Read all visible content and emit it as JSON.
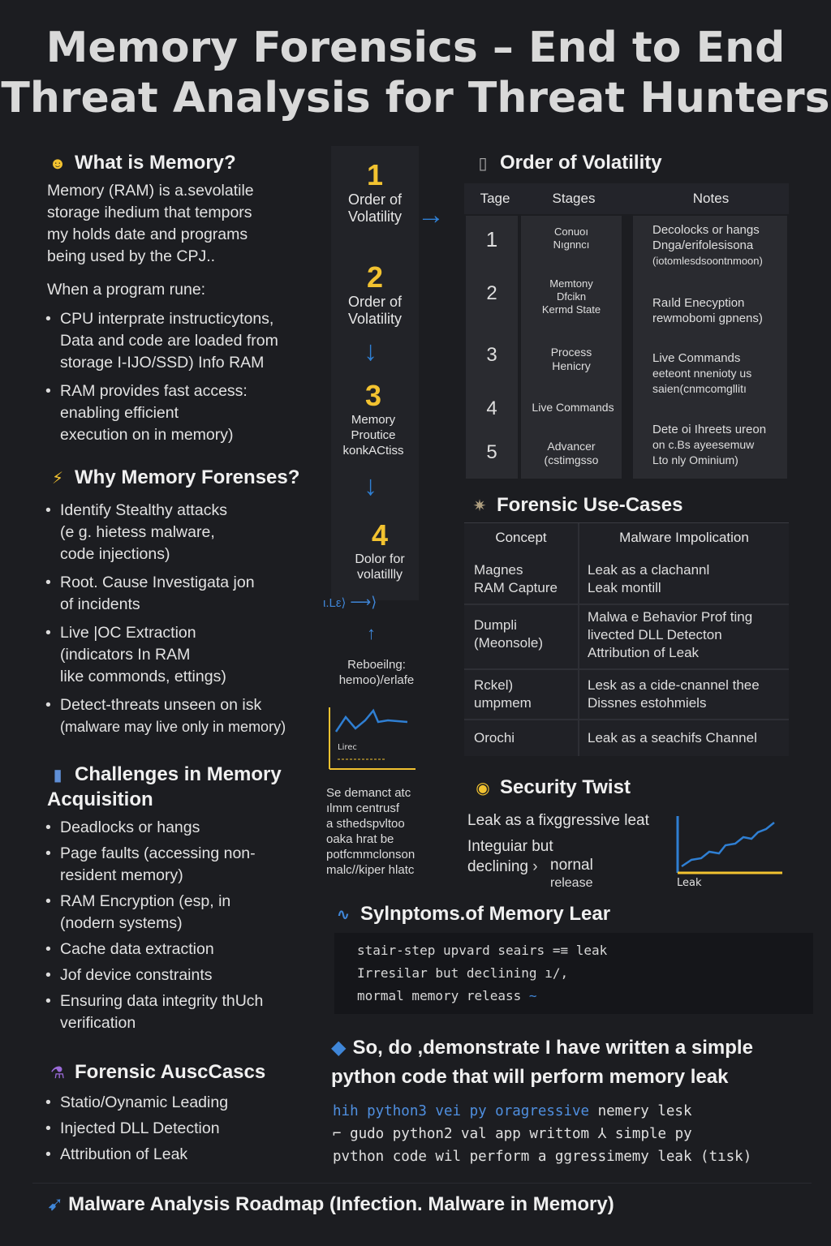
{
  "title": {
    "line1": "Memory Forensics – End to End",
    "line2": "Threat Analysis for Threat Hunters"
  },
  "left": {
    "what": {
      "icon": "smiley-icon",
      "heading": "What is Memory?",
      "para1": [
        "Memory (RAM) is a.sevolatile",
        "storage ihedium that tempors",
        "my holds date and programs",
        "being used by the CPJ.."
      ],
      "para2": "When a program rune:",
      "bullets": [
        [
          "CPU interprate instructicytons,",
          "Data and code are loaded from",
          "storage I-IJO/SSD) Info RAM"
        ],
        [
          "RAM provides fast access:",
          "enabling efficient",
          "execution on in memory)"
        ]
      ]
    },
    "why": {
      "icon": "lightning-icon",
      "heading": "Why Memory Forenses?",
      "bullets": [
        [
          "Identify Stealthy attacks",
          "(e g. hietess malware,",
          "code injections)"
        ],
        [
          "Root. Cause Investigata jon",
          "of incidents"
        ],
        [
          "Live |OC Extraction",
          "(indicators In RAM",
          "like commonds, ettings)"
        ],
        [
          "Detect-threats unseen on isk",
          "(malware may live only in memory)"
        ]
      ]
    },
    "challenges": {
      "icon": "phone-icon",
      "heading_l1": "Challenges in Memory",
      "heading_l2": "Acquisition",
      "bullets": [
        [
          "Deadlocks or hangs"
        ],
        [
          "Page faults (accessing non-",
          "resident memory)"
        ],
        [
          "RAM Encryption (esp, in",
          "(nodern systems)"
        ],
        [
          "Cache data extraction"
        ],
        [
          "Jof device constraints"
        ],
        [
          "Ensuring data integrity thUch",
          "verification"
        ]
      ]
    },
    "forensic": {
      "icon": "flask-icon",
      "heading": "Forensic AuscCascs",
      "bullets": [
        [
          "Statio/Oynamic Leading"
        ],
        [
          "Injected DLL Detection"
        ],
        [
          "Attribution of Leak"
        ]
      ]
    }
  },
  "flow": {
    "steps": [
      {
        "num": "1",
        "label": [
          "Order of",
          "Volatility"
        ]
      },
      {
        "num": "2",
        "label": [
          "Order of",
          "Volatility"
        ]
      },
      {
        "num": "3",
        "label": [
          "Memory",
          "Proutice",
          "konkACtiss"
        ]
      },
      {
        "num": "4",
        "label": [
          "Dolor for",
          "volatillly"
        ]
      }
    ],
    "squiggle": "ι.Lε⟩",
    "rebooting": [
      "Reboeilng:",
      "hemoo)/erlafe"
    ],
    "mini_chart_label": "Lirec",
    "note": [
      "Se demanct atc",
      "ılmm centrusf",
      "a sthedspvltoo",
      "oaka hrat be",
      "potfcmmclonson",
      "malc//kiper hlatc"
    ]
  },
  "volatility": {
    "icon": "server-icon",
    "heading": "Order of Volatility",
    "headers": [
      "Tage",
      "Stages",
      "Notes"
    ],
    "rows": [
      {
        "tage": "1",
        "stage": [
          "Conuoı",
          "Nıgnncı"
        ],
        "notes": [
          "Decolocks or hangs",
          "Dnga/erifolesisona",
          "(iotomlesdsoontnmoon)"
        ]
      },
      {
        "tage": "2",
        "stage": [
          "Memtony",
          "Dfcikn",
          "Kermd State"
        ],
        "notes": [
          "Raıld Enecyption",
          "rewmobomi gpnens)"
        ]
      },
      {
        "tage": "3",
        "stage": [
          "Process",
          "Henicry"
        ],
        "notes": [
          "Live Commands",
          "eeteont nnenioty us",
          "saien(cnmcomgllitı"
        ]
      },
      {
        "tage": "4",
        "stage": [
          "Live Commands"
        ],
        "notes": [
          "Dete oi Ihreets ureon",
          "on c.Bs ayeesemuw",
          "Lto nly Ominium)"
        ]
      },
      {
        "tage": "5",
        "stage": [
          "Advancer",
          "(cstimgsso"
        ],
        "notes": []
      }
    ]
  },
  "usecases": {
    "icon": "bug-icon",
    "heading": "Forensic Use-Cases",
    "headers": [
      "Concept",
      "Malware Impolication"
    ],
    "rows": [
      {
        "concept": [
          "Magnes",
          "RAM Capture"
        ],
        "impl": [
          "Leak as a clachannl",
          "Leak montill"
        ]
      },
      {
        "concept": [
          "Dumpli",
          "(Meonsole)"
        ],
        "impl": [
          "Malwa e Behavior Prof ting",
          "livected DLL Detecton",
          "Attribution of Leak"
        ]
      },
      {
        "concept": [
          "Rckel)",
          "umpmem"
        ],
        "impl": [
          "Lesk as a cide-cnannel thee",
          "Dissnes estohmiels"
        ]
      },
      {
        "concept": [
          "Orochi"
        ],
        "impl": [
          "Leak as a seachifs Channel"
        ]
      }
    ]
  },
  "twist": {
    "icon": "coin-icon",
    "heading": "Security Twist",
    "line1": "Leak as a fixggressive leat",
    "line2": "Integuiar but",
    "line3a": "declining",
    "line3b": "nornal",
    "line4": "release",
    "chart_label": "Leak"
  },
  "symptoms": {
    "icon": "wave-icon",
    "heading": "Sylnptoms.of Memory Lear",
    "lines": [
      "stair-step upvard seairs =≡ leak",
      "Irresilar but declining ı/,",
      "mormal memory releass"
    ]
  },
  "demo": {
    "icon": "diamond-icon",
    "heading_l1": "So, do ,demonstrate I have written a simple",
    "heading_l2": "python code that will perform memory leak",
    "code": [
      {
        "a": "hih python3 vei py oragressive",
        "b": " nemery lesk"
      },
      {
        "a": "",
        "b": "⌐ gudo python2 val app writtom ⅄ simple py"
      },
      {
        "a": "",
        "b": "pvthon code wil perform a ggressimemy leak (tısk)"
      }
    ]
  },
  "footer": {
    "icon": "bird-icon",
    "text": "Malware Analysis Roadmap (Infection. Malware in Memory)"
  },
  "colors": {
    "background": "#1c1d21",
    "accent_yellow": "#f2c230",
    "accent_blue": "#2f7fd3"
  }
}
